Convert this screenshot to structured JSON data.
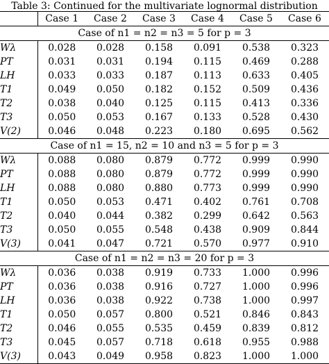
{
  "caption": "Table 3: Continued for the multivariate lognormal distribution",
  "columns": [
    "",
    "Case 1",
    "Case 2",
    "Case 3",
    "Case 4",
    "Case 5",
    "Case 6"
  ],
  "sections": [
    {
      "heading": "Case of n1 = n2 = n3 = 5 for p = 3",
      "rows": [
        {
          "label": "Wλ",
          "values": [
            "0.028",
            "0.028",
            "0.158",
            "0.091",
            "0.538",
            "0.323"
          ]
        },
        {
          "label": "PT",
          "values": [
            "0.031",
            "0.031",
            "0.194",
            "0.115",
            "0.469",
            "0.288"
          ]
        },
        {
          "label": "LH",
          "values": [
            "0.033",
            "0.033",
            "0.187",
            "0.113",
            "0.633",
            "0.405"
          ]
        },
        {
          "label": "T1",
          "values": [
            "0.049",
            "0.050",
            "0.182",
            "0.152",
            "0.509",
            "0.436"
          ]
        },
        {
          "label": "T2",
          "values": [
            "0.038",
            "0.040",
            "0.125",
            "0.115",
            "0.413",
            "0.336"
          ]
        },
        {
          "label": "T3",
          "values": [
            "0.050",
            "0.053",
            "0.167",
            "0.133",
            "0.528",
            "0.430"
          ]
        },
        {
          "label": "V(2)",
          "values": [
            "0.046",
            "0.048",
            "0.223",
            "0.180",
            "0.695",
            "0.562"
          ]
        }
      ]
    },
    {
      "heading": "Case of n1 = 15, n2 = 10 and n3 = 5 for p = 3",
      "rows": [
        {
          "label": "Wλ",
          "values": [
            "0.088",
            "0.080",
            "0.879",
            "0.772",
            "0.999",
            "0.990"
          ]
        },
        {
          "label": "PT",
          "values": [
            "0.088",
            "0.080",
            "0.879",
            "0.772",
            "0.999",
            "0.990"
          ]
        },
        {
          "label": "LH",
          "values": [
            "0.088",
            "0.080",
            "0.880",
            "0.773",
            "0.999",
            "0.990"
          ]
        },
        {
          "label": "T1",
          "values": [
            "0.050",
            "0.053",
            "0.471",
            "0.402",
            "0.761",
            "0.708"
          ]
        },
        {
          "label": "T2",
          "values": [
            "0.040",
            "0.044",
            "0.382",
            "0.299",
            "0.642",
            "0.563"
          ]
        },
        {
          "label": "T3",
          "values": [
            "0.050",
            "0.055",
            "0.548",
            "0.438",
            "0.909",
            "0.844"
          ]
        },
        {
          "label": "V(3)",
          "values": [
            "0.041",
            "0.047",
            "0.721",
            "0.570",
            "0.977",
            "0.910"
          ]
        }
      ]
    },
    {
      "heading": "Case of n1 = n2 = n3 = 20 for p = 3",
      "rows": [
        {
          "label": "Wλ",
          "values": [
            "0.036",
            "0.038",
            "0.919",
            "0.733",
            "1.000",
            "0.996"
          ]
        },
        {
          "label": "PT",
          "values": [
            "0.036",
            "0.038",
            "0.916",
            "0.727",
            "1.000",
            "0.996"
          ]
        },
        {
          "label": "LH",
          "values": [
            "0.036",
            "0.038",
            "0.922",
            "0.738",
            "1.000",
            "0.997"
          ]
        },
        {
          "label": "T1",
          "values": [
            "0.050",
            "0.057",
            "0.800",
            "0.521",
            "0.846",
            "0.843"
          ]
        },
        {
          "label": "T2",
          "values": [
            "0.046",
            "0.055",
            "0.535",
            "0.459",
            "0.839",
            "0.812"
          ]
        },
        {
          "label": "T3",
          "values": [
            "0.045",
            "0.057",
            "0.718",
            "0.618",
            "0.955",
            "0.988"
          ]
        },
        {
          "label": "V(3)",
          "values": [
            "0.043",
            "0.049",
            "0.958",
            "0.823",
            "1.000",
            "1.000"
          ]
        }
      ]
    }
  ]
}
